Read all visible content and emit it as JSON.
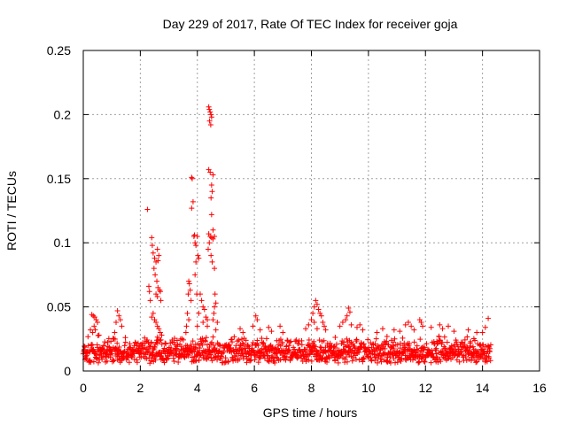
{
  "chart_data": {
    "type": "scatter",
    "title": "Day 229 of 2017, Rate Of TEC Index for receiver goja",
    "xlabel": "GPS time / hours",
    "ylabel": "ROTI / TECUs",
    "xlim": [
      0,
      16
    ],
    "ylim": [
      0,
      0.25
    ],
    "x_ticks": [
      0,
      2,
      4,
      6,
      8,
      10,
      12,
      14,
      16
    ],
    "x_tick_labels": [
      "0",
      "2",
      "4",
      "6",
      "8",
      "10",
      "12",
      "14",
      "16"
    ],
    "y_ticks": [
      0,
      0.05,
      0.1,
      0.15,
      0.2,
      0.25
    ],
    "y_tick_labels": [
      "0",
      "0.05",
      "0.1",
      "0.15",
      "0.2",
      "0.25"
    ],
    "grid": true,
    "marker": "+",
    "colors": {
      "points": "#ff0000",
      "grid": "#a0a0a0",
      "axis": "#000000"
    },
    "series": [
      {
        "name": "ROTI",
        "baseline": {
          "x_start": 0,
          "x_end": 14.3,
          "y_min": 0.006,
          "y_max": 0.028
        },
        "points": [
          [
            0.3,
            0.044
          ],
          [
            0.35,
            0.043
          ],
          [
            0.4,
            0.042
          ],
          [
            0.45,
            0.04
          ],
          [
            0.38,
            0.035
          ],
          [
            0.42,
            0.032
          ],
          [
            0.5,
            0.038
          ],
          [
            0.33,
            0.03
          ],
          [
            0.55,
            0.028
          ],
          [
            0.25,
            0.032
          ],
          [
            1.2,
            0.047
          ],
          [
            1.25,
            0.043
          ],
          [
            1.3,
            0.04
          ],
          [
            1.15,
            0.038
          ],
          [
            1.1,
            0.03
          ],
          [
            1.35,
            0.035
          ],
          [
            2.25,
            0.126
          ],
          [
            2.4,
            0.104
          ],
          [
            2.42,
            0.098
          ],
          [
            2.45,
            0.092
          ],
          [
            2.5,
            0.088
          ],
          [
            2.55,
            0.085
          ],
          [
            2.6,
            0.095
          ],
          [
            2.65,
            0.09
          ],
          [
            2.48,
            0.08
          ],
          [
            2.52,
            0.075
          ],
          [
            2.58,
            0.07
          ],
          [
            2.62,
            0.065
          ],
          [
            2.68,
            0.063
          ],
          [
            2.55,
            0.06
          ],
          [
            2.6,
            0.058
          ],
          [
            2.3,
            0.066
          ],
          [
            2.32,
            0.062
          ],
          [
            2.45,
            0.045
          ],
          [
            2.5,
            0.04
          ],
          [
            2.55,
            0.038
          ],
          [
            2.6,
            0.035
          ],
          [
            2.65,
            0.033
          ],
          [
            2.7,
            0.03
          ],
          [
            2.75,
            0.028
          ],
          [
            2.4,
            0.042
          ],
          [
            2.35,
            0.055
          ],
          [
            2.62,
            0.086
          ],
          [
            2.7,
            0.062
          ],
          [
            2.72,
            0.055
          ],
          [
            3.7,
            0.07
          ],
          [
            3.72,
            0.068
          ],
          [
            3.75,
            0.063
          ],
          [
            3.68,
            0.06
          ],
          [
            3.78,
            0.055
          ],
          [
            3.65,
            0.045
          ],
          [
            3.7,
            0.04
          ],
          [
            3.62,
            0.035
          ],
          [
            3.6,
            0.03
          ],
          [
            3.8,
            0.151
          ],
          [
            3.82,
            0.15
          ],
          [
            3.85,
            0.132
          ],
          [
            3.8,
            0.127
          ],
          [
            3.9,
            0.106
          ],
          [
            3.88,
            0.105
          ],
          [
            3.92,
            0.1
          ],
          [
            3.95,
            0.098
          ],
          [
            4.0,
            0.105
          ],
          [
            4.02,
            0.09
          ],
          [
            4.05,
            0.088
          ],
          [
            3.95,
            0.085
          ],
          [
            3.92,
            0.075
          ],
          [
            4.1,
            0.06
          ],
          [
            4.15,
            0.055
          ],
          [
            4.2,
            0.05
          ],
          [
            4.25,
            0.048
          ],
          [
            4.05,
            0.045
          ],
          [
            4.3,
            0.042
          ],
          [
            4.35,
            0.04
          ],
          [
            4.2,
            0.038
          ],
          [
            4.0,
            0.035
          ],
          [
            3.98,
            0.06
          ],
          [
            4.4,
            0.206
          ],
          [
            4.42,
            0.204
          ],
          [
            4.45,
            0.202
          ],
          [
            4.48,
            0.2
          ],
          [
            4.5,
            0.198
          ],
          [
            4.43,
            0.195
          ],
          [
            4.47,
            0.192
          ],
          [
            4.4,
            0.157
          ],
          [
            4.45,
            0.155
          ],
          [
            4.55,
            0.153
          ],
          [
            4.5,
            0.145
          ],
          [
            4.52,
            0.14
          ],
          [
            4.48,
            0.135
          ],
          [
            4.5,
            0.122
          ],
          [
            4.55,
            0.11
          ],
          [
            4.4,
            0.107
          ],
          [
            4.45,
            0.105
          ],
          [
            4.5,
            0.104
          ],
          [
            4.55,
            0.103
          ],
          [
            4.6,
            0.105
          ],
          [
            4.42,
            0.1
          ],
          [
            4.38,
            0.095
          ],
          [
            4.48,
            0.09
          ],
          [
            4.52,
            0.085
          ],
          [
            4.6,
            0.08
          ],
          [
            4.62,
            0.06
          ],
          [
            4.65,
            0.053
          ],
          [
            4.6,
            0.05
          ],
          [
            4.58,
            0.045
          ],
          [
            4.55,
            0.04
          ],
          [
            4.7,
            0.038
          ],
          [
            4.35,
            0.035
          ],
          [
            4.65,
            0.032
          ],
          [
            6.05,
            0.043
          ],
          [
            6.1,
            0.04
          ],
          [
            5.95,
            0.035
          ],
          [
            6.2,
            0.032
          ],
          [
            5.5,
            0.033
          ],
          [
            5.6,
            0.03
          ],
          [
            6.5,
            0.034
          ],
          [
            6.6,
            0.031
          ],
          [
            6.9,
            0.035
          ],
          [
            7.0,
            0.03
          ],
          [
            7.8,
            0.033
          ],
          [
            7.9,
            0.036
          ],
          [
            8.0,
            0.04
          ],
          [
            8.05,
            0.045
          ],
          [
            8.1,
            0.05
          ],
          [
            8.15,
            0.055
          ],
          [
            8.2,
            0.052
          ],
          [
            8.25,
            0.048
          ],
          [
            8.3,
            0.045
          ],
          [
            8.35,
            0.043
          ],
          [
            8.4,
            0.038
          ],
          [
            8.45,
            0.035
          ],
          [
            8.1,
            0.038
          ],
          [
            8.2,
            0.033
          ],
          [
            8.5,
            0.032
          ],
          [
            9.0,
            0.035
          ],
          [
            9.1,
            0.038
          ],
          [
            9.2,
            0.04
          ],
          [
            9.3,
            0.049
          ],
          [
            9.35,
            0.046
          ],
          [
            9.25,
            0.043
          ],
          [
            9.4,
            0.036
          ],
          [
            9.6,
            0.034
          ],
          [
            9.8,
            0.032
          ],
          [
            9.7,
            0.036
          ],
          [
            10.3,
            0.03
          ],
          [
            10.5,
            0.033
          ],
          [
            10.9,
            0.032
          ],
          [
            11.1,
            0.031
          ],
          [
            11.3,
            0.036
          ],
          [
            11.4,
            0.038
          ],
          [
            11.5,
            0.035
          ],
          [
            11.6,
            0.032
          ],
          [
            11.8,
            0.04
          ],
          [
            11.85,
            0.038
          ],
          [
            11.9,
            0.035
          ],
          [
            12.2,
            0.034
          ],
          [
            12.5,
            0.036
          ],
          [
            12.6,
            0.033
          ],
          [
            12.8,
            0.035
          ],
          [
            13.0,
            0.031
          ],
          [
            13.5,
            0.032
          ],
          [
            13.8,
            0.03
          ],
          [
            14.0,
            0.03
          ],
          [
            14.1,
            0.034
          ],
          [
            14.2,
            0.041
          ]
        ]
      }
    ]
  }
}
